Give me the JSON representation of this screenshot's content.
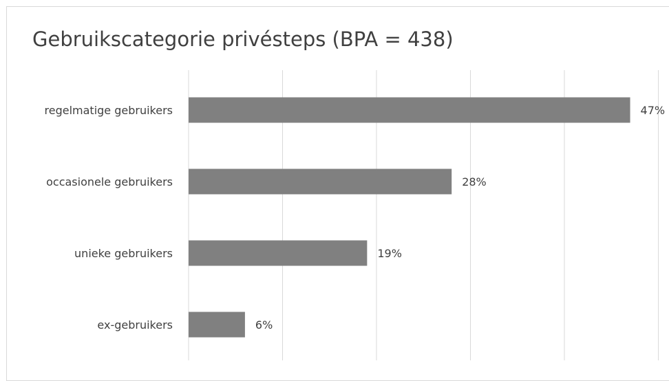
{
  "chart_data": {
    "type": "bar",
    "orientation": "horizontal",
    "title": "Gebruikscategorie privésteps (BPA = 438)",
    "categories": [
      "regelmatige gebruikers",
      "occasionele gebruikers",
      "unieke gebruikers",
      "ex-gebruikers"
    ],
    "values": [
      47,
      28,
      19,
      6
    ],
    "data_labels": [
      "47%",
      "28%",
      "19%",
      "6%"
    ],
    "xlim": [
      0,
      50
    ],
    "grid": true,
    "legend": "none",
    "colors": {
      "bar": "#808080",
      "grid": "#d9d9d9",
      "text": "#404040"
    }
  }
}
